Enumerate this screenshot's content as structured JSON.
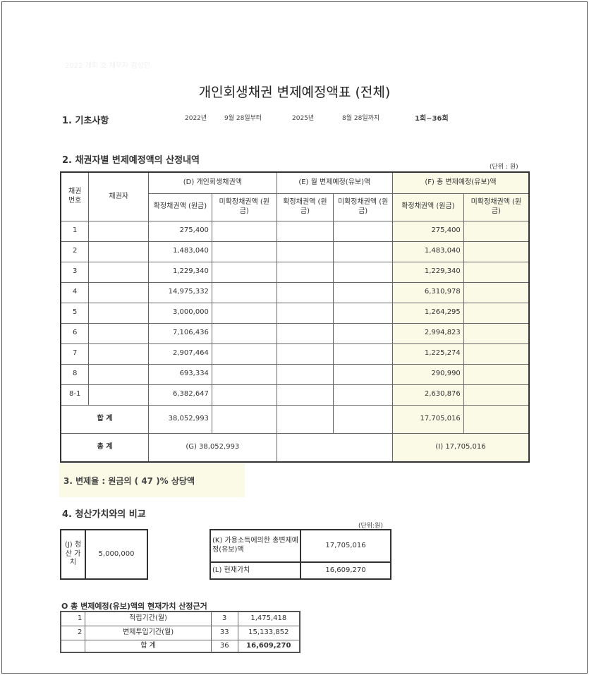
{
  "faint_header": "2022 개회 호 채무자 김성민",
  "title": "개인회생채권 변제예정액표 (전체)",
  "section1": {
    "heading": "1. 기초사항",
    "start_year": "2022년",
    "start_date": "9월 28일부터",
    "end_year": "2025년",
    "end_date": "8월 28일까지",
    "rounds": "1회~36회"
  },
  "section2": {
    "heading": "2. 채권자별 변제예정액의 산정내역",
    "unit": "(단위 : 원)",
    "headers": {
      "no": "채권 번호",
      "creditor": "채권자",
      "d": "(D) 개인회생채권액",
      "e": "(E) 월 변제예정(유보)액",
      "f": "(F) 총 변제예정(유보)액",
      "confirmed": "확정채권액 (원금)",
      "unconfirmed": "미확정채권액 (원금)"
    },
    "rows": [
      {
        "no": "1",
        "d": "275,400",
        "f": "275,400"
      },
      {
        "no": "2",
        "d": "1,483,040",
        "f": "1,483,040"
      },
      {
        "no": "3",
        "d": "1,229,340",
        "f": "1,229,340"
      },
      {
        "no": "4",
        "d": "14,975,332",
        "f": "6,310,978"
      },
      {
        "no": "5",
        "d": "3,000,000",
        "f": "1,264,295"
      },
      {
        "no": "6",
        "d": "7,106,436",
        "f": "2,994,823"
      },
      {
        "no": "7",
        "d": "2,907,464",
        "f": "1,225,274"
      },
      {
        "no": "8",
        "d": "693,334",
        "f": "290,990"
      },
      {
        "no": "8-1",
        "d": "6,382,647",
        "f": "2,630,876"
      }
    ],
    "subtotal": {
      "label": "합 계",
      "d": "38,052,993",
      "f": "17,705,016"
    },
    "total": {
      "label": "총 계",
      "g": "(G)  38,052,993",
      "i": "(I)  17,705,016"
    }
  },
  "section3": {
    "text": "3. 변제율 : 원금의  ( 47 )%  상당액",
    "rate_percent": 47
  },
  "section4": {
    "heading": "4. 청산가치와의 비교",
    "unit": "(단위:원)",
    "j_label": "(J) 청산 가치",
    "j_value": "5,000,000",
    "k_label": "(K) 가용소득에의한 총변제예정(유보)액",
    "k_value": "17,705,016",
    "l_label": "(L)  현재가치",
    "l_value": "16,609,270"
  },
  "basis": {
    "heading": "O 총 변제예정(유보)액의 현재가치 산정근거",
    "rows": [
      {
        "no": "1",
        "label": "적립기간(월)",
        "months": "3",
        "amount": "1,475,418"
      },
      {
        "no": "2",
        "label": "변제투입기간(월)",
        "months": "33",
        "amount": "15,133,852"
      }
    ],
    "total": {
      "label": "합  계",
      "months": "36",
      "amount": "16,609,270"
    }
  }
}
